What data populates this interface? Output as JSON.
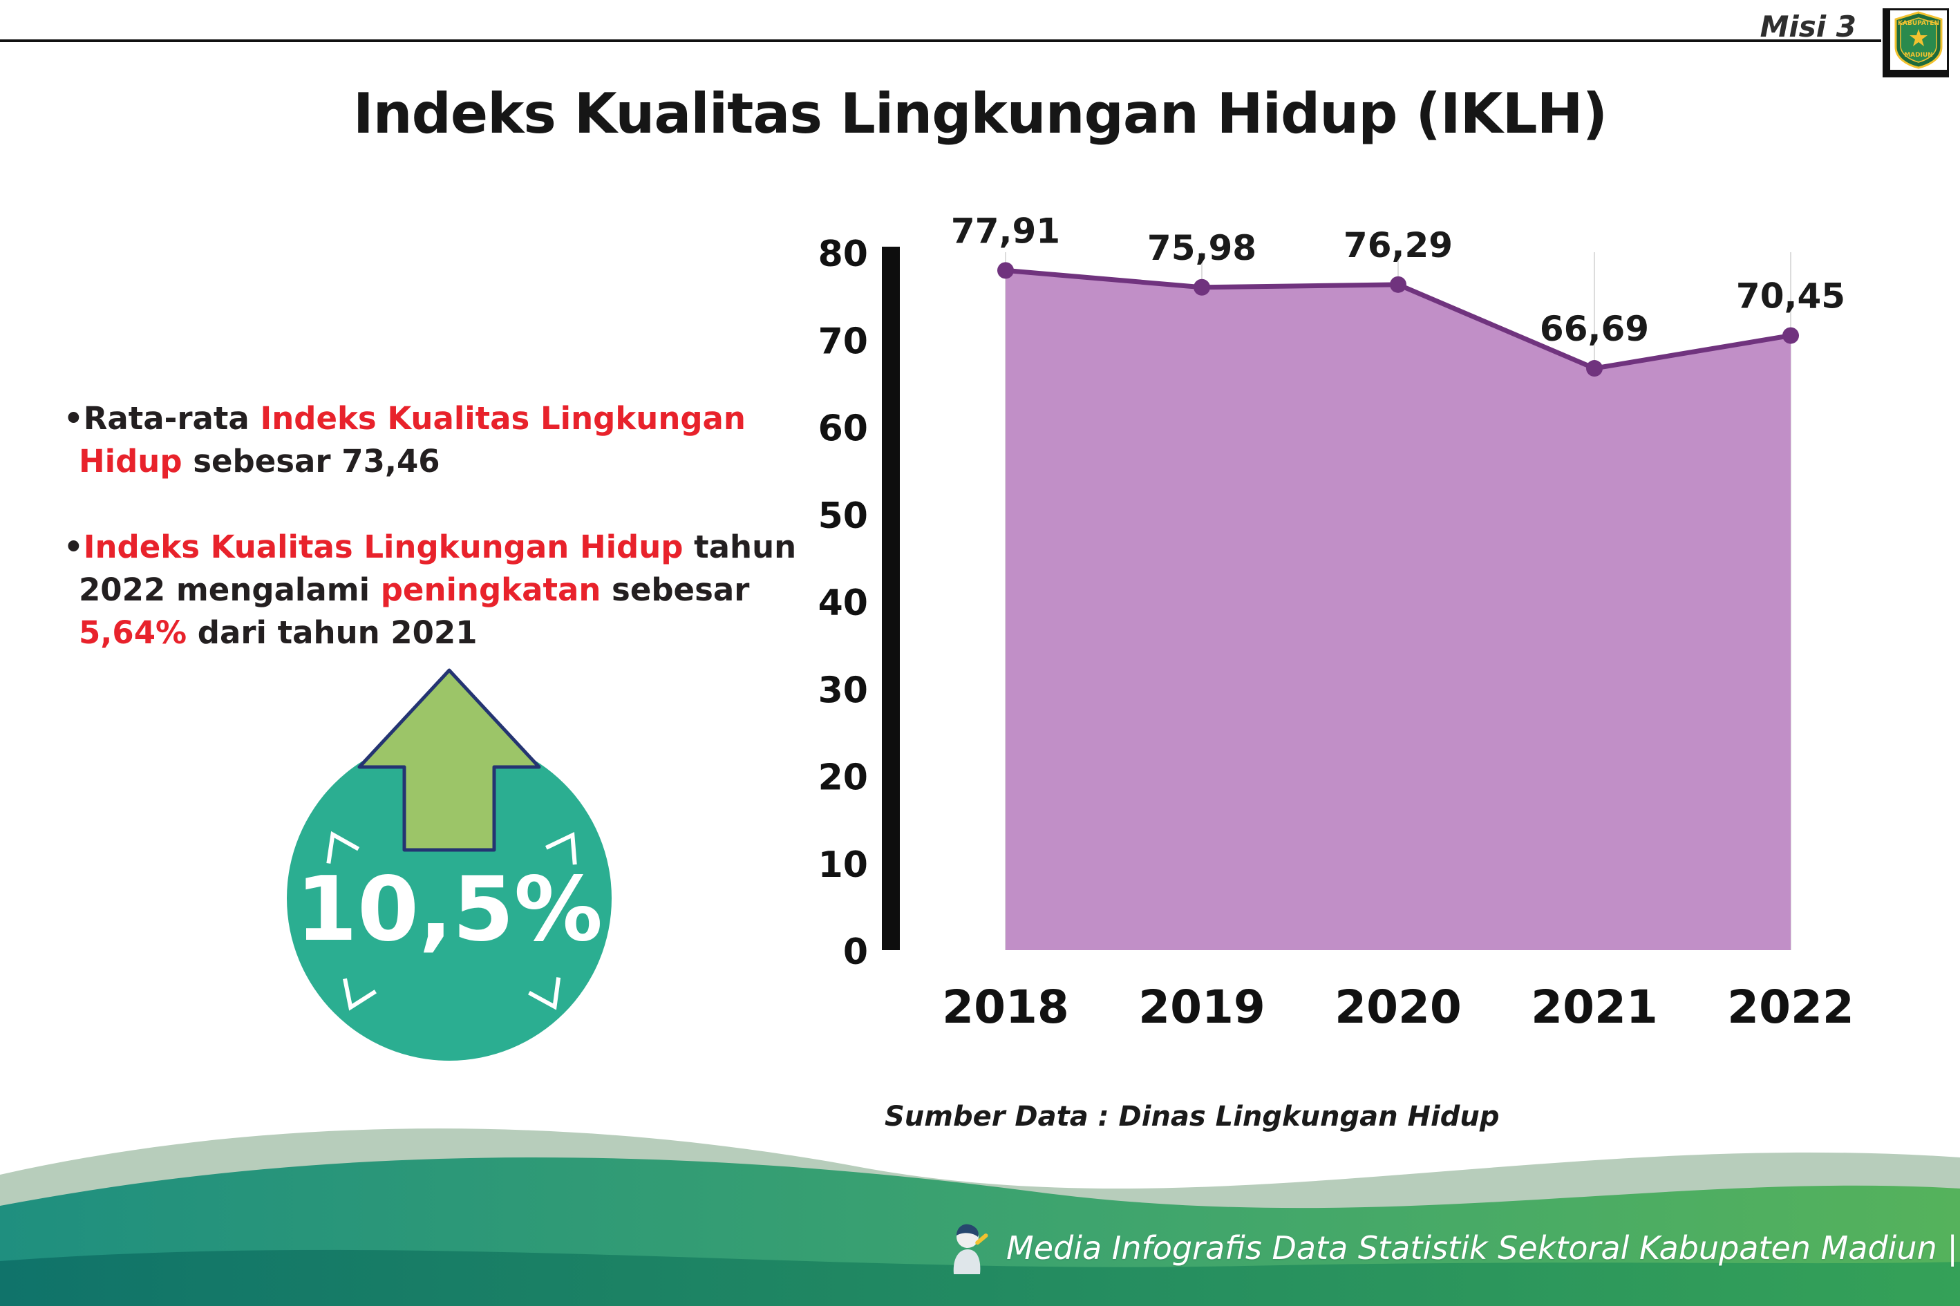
{
  "header": {
    "misi_label": "Misi 3",
    "title": "Indeks Kualitas Lingkungan Hidup (IKLH)",
    "logo_top": "KABUPATEN",
    "logo_bottom": "MADIUN"
  },
  "bullets": {
    "bullet1": {
      "seg1": "Rata-rata ",
      "seg2": "Indeks Kualitas Lingkungan Hidup",
      "seg3": " sebesar 73,46"
    },
    "bullet2": {
      "seg1": "Indeks Kualitas Lingkungan Hidup",
      "seg2": " tahun 2022 mengalami ",
      "seg3": "peningkatan",
      "seg4": " sebesar ",
      "seg5": "5,64%",
      "seg6": " dari tahun 2021"
    }
  },
  "badge": {
    "value": "10,5%"
  },
  "chart_data": {
    "type": "area",
    "title": "Indeks Kualitas Lingkungan Hidup (IKLH)",
    "categories": [
      "2018",
      "2019",
      "2020",
      "2021",
      "2022"
    ],
    "values": [
      77.91,
      75.98,
      76.29,
      66.69,
      70.45
    ],
    "value_labels": [
      "77,91",
      "75,98",
      "76,29",
      "66,69",
      "70,45"
    ],
    "xlabel": "",
    "ylabel": "",
    "ylim": [
      0,
      80
    ],
    "yticks": [
      0,
      10,
      20,
      30,
      40,
      50,
      60,
      70,
      80
    ],
    "grid": "vertical",
    "legend": "none",
    "area_color": "#C18FC7",
    "line_color": "#70337E",
    "source": "Sumber Data : Dinas Lingkungan Hidup"
  },
  "footer": {
    "text": "Media Infografis Data Statistik Sektoral Kabupaten Madiun |"
  },
  "colors": {
    "accent_red": "#E8222B",
    "badge_teal": "#2BAE91",
    "arrow_green": "#9CC568",
    "arrow_outline": "#243472",
    "area_fill": "#C18FC7",
    "line_purple": "#70337E",
    "footer_teal": "#1F8F7F",
    "footer_green": "#55B25C"
  }
}
